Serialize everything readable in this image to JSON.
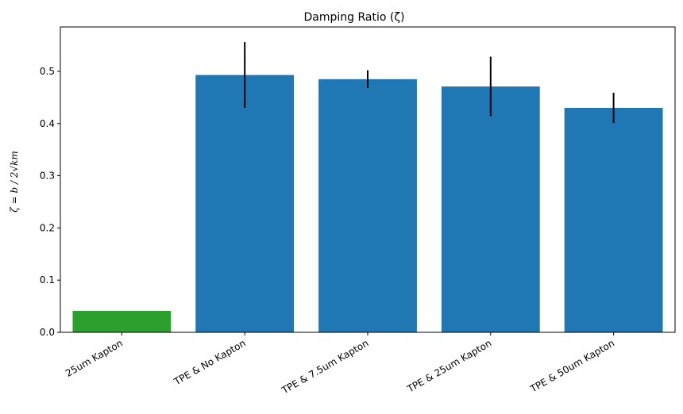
{
  "chart_data": {
    "type": "bar",
    "title": "Damping Ratio (ζ)",
    "ylabel": "ζ = b / 2√km",
    "xlabel": "",
    "ylim": [
      0,
      0.585
    ],
    "yticks": [
      "0.0",
      "0.1",
      "0.2",
      "0.3",
      "0.4",
      "0.5"
    ],
    "categories": [
      "25um Kapton",
      "TPE & No Kapton",
      "TPE & 7.5um Kapton",
      "TPE & 25um Kapton",
      "TPE & 50um Kapton"
    ],
    "values": [
      0.041,
      0.493,
      0.485,
      0.471,
      0.43
    ],
    "errors": [
      0,
      0.063,
      0.017,
      0.057,
      0.029
    ],
    "colors": [
      "#2ca02c",
      "#1f77b4",
      "#1f77b4",
      "#1f77b4",
      "#1f77b4"
    ],
    "grid": false,
    "legend": "none"
  }
}
